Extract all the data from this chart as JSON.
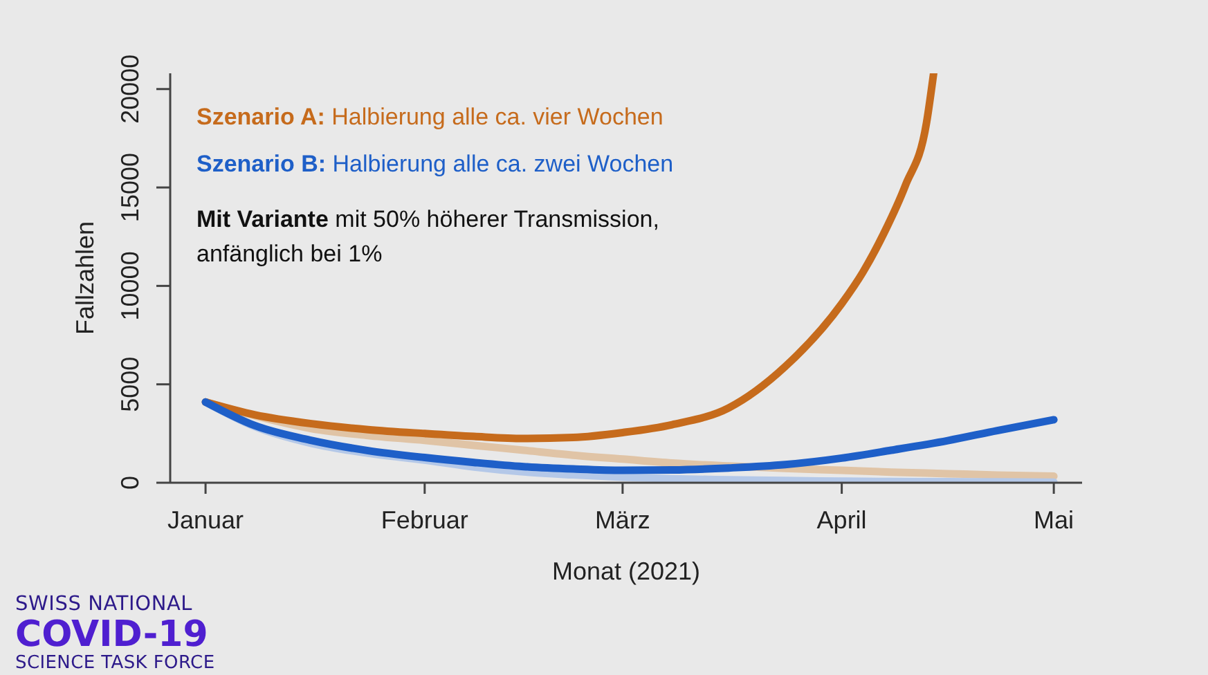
{
  "chart_data": {
    "type": "line",
    "xlabel": "Monat (2021)",
    "ylabel": "Fallzahlen",
    "x": [
      "2021-01-01",
      "2021-01-08",
      "2021-01-16",
      "2021-01-24",
      "2021-02-01",
      "2021-02-08",
      "2021-02-15",
      "2021-02-22",
      "2021-03-01",
      "2021-03-08",
      "2021-03-16",
      "2021-03-24",
      "2021-04-01",
      "2021-04-08",
      "2021-04-16",
      "2021-04-23",
      "2021-05-01"
    ],
    "series": [
      {
        "color": "#e0c4a6",
        "values": [
          4100,
          3400,
          2750,
          2400,
          2150,
          1900,
          1650,
          1400,
          1200,
          1000,
          850,
          730,
          630,
          540,
          460,
          390,
          330
        ]
      },
      {
        "color": "#b4c8e8",
        "values": [
          4100,
          2850,
          2000,
          1500,
          1150,
          800,
          550,
          400,
          280,
          200,
          150,
          110,
          80,
          60,
          50,
          40,
          30
        ]
      },
      {
        "name": "Szenario A: Halbierung alle ca. vier Wochen",
        "color": "#c66b1c",
        "x": [
          "2021-01-01",
          "2021-01-08",
          "2021-01-16",
          "2021-01-24",
          "2021-02-01",
          "2021-02-08",
          "2021-02-15",
          "2021-02-22",
          "2021-03-01",
          "2021-03-08",
          "2021-03-16",
          "2021-03-24",
          "2021-04-01",
          "2021-04-04",
          "2021-04-07",
          "2021-04-10",
          "2021-04-13",
          "2021-04-14"
        ],
        "values": [
          4100,
          3450,
          3000,
          2700,
          2500,
          2350,
          2250,
          2300,
          2550,
          2950,
          3800,
          5900,
          9100,
          10700,
          12700,
          15100,
          18300,
          20800
        ]
      },
      {
        "name": "Szenario B: Halbierung alle ca. zwei Wochen",
        "color": "#1e5fc8",
        "values": [
          4100,
          2900,
          2150,
          1630,
          1280,
          1030,
          820,
          700,
          630,
          650,
          750,
          920,
          1250,
          1650,
          2140,
          2650,
          3200
        ]
      }
    ],
    "xlim": [
      "2020-12-27",
      "2021-05-05"
    ],
    "xticks": [
      {
        "value": "2021-01-01",
        "label": "Januar"
      },
      {
        "value": "2021-02-01",
        "label": "Februar"
      },
      {
        "value": "2021-03-01",
        "label": "März"
      },
      {
        "value": "2021-04-01",
        "label": "April"
      },
      {
        "value": "2021-05-01",
        "label": "Mai"
      }
    ],
    "ylim": [
      0,
      20800
    ],
    "yticks": [
      0,
      5000,
      10000,
      15000,
      20000
    ],
    "legend": "top left",
    "marker": "none",
    "line_style": "solid",
    "annotations": [
      "Mit Variante mit 50% höherer Transmission,\nanfänglich bei 1%",
      "SWISS NATIONAL\nCOVID-19\nSCIENCE TASK FORCE"
    ]
  }
}
